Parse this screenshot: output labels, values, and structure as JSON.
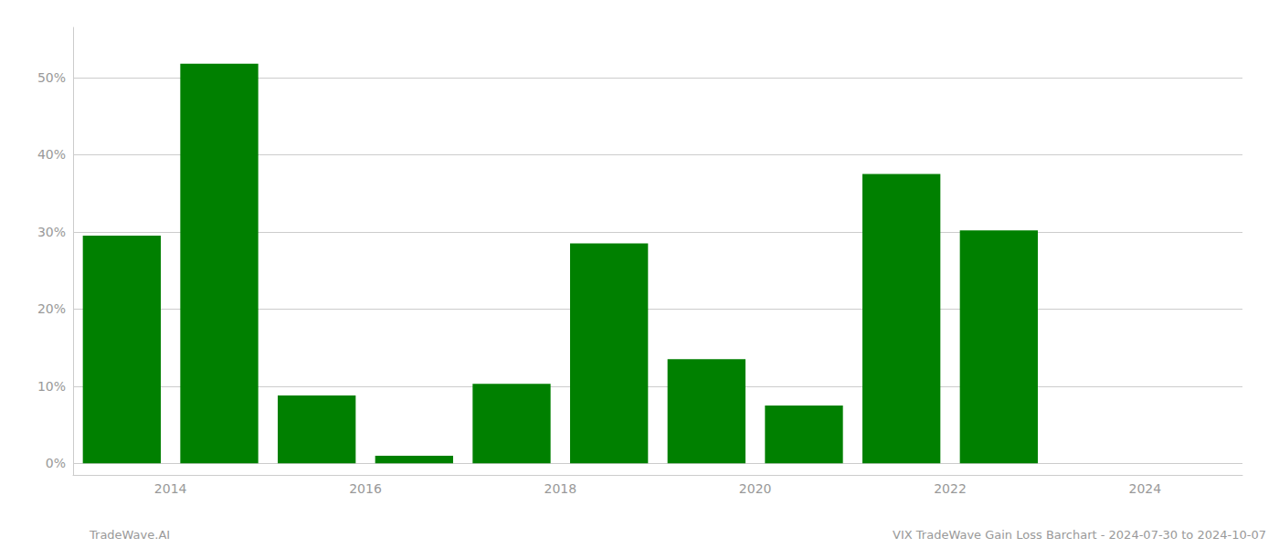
{
  "chart_data": {
    "type": "bar",
    "x": [
      2013.5,
      2014.5,
      2015.5,
      2016.5,
      2017.5,
      2018.5,
      2019.5,
      2020.5,
      2021.5,
      2022.5,
      2023.5
    ],
    "values": [
      0.295,
      0.518,
      0.088,
      0.01,
      0.103,
      0.285,
      0.135,
      0.075,
      0.375,
      0.302,
      0.0
    ],
    "color": "#008000",
    "xlim": [
      2013.0,
      2025.0
    ],
    "xticks": [
      2014,
      2016,
      2018,
      2020,
      2022,
      2024
    ],
    "ylim": [
      -0.015,
      0.565
    ],
    "yticks": [
      {
        "value": 0,
        "label": "0%"
      },
      {
        "value": 0.1,
        "label": "10%"
      },
      {
        "value": 0.2,
        "label": "20%"
      },
      {
        "value": 0.3,
        "label": "30%"
      },
      {
        "value": 0.4,
        "label": "40%"
      },
      {
        "value": 0.5,
        "label": "50%"
      }
    ],
    "grid": true,
    "annotations": [
      "TradeWave.AI",
      "VIX TradeWave Gain Loss Barchart - 2024-07-30 to 2024-10-07"
    ]
  }
}
